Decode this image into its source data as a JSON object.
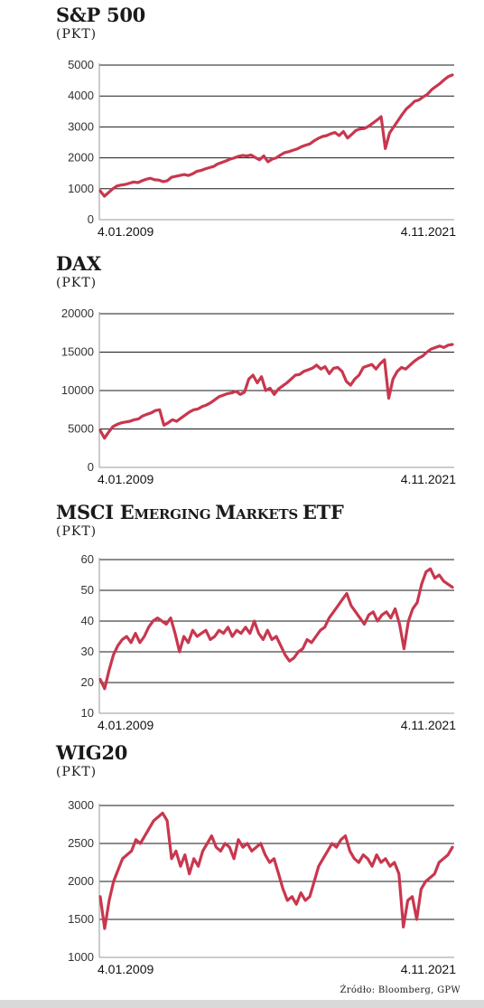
{
  "source": "Źródło: Bloomberg, GPW",
  "style": {
    "line_color": "#c8374e",
    "grid_color": "#1a1a1a",
    "axis_color": "#999999"
  },
  "chart_data": [
    {
      "type": "line",
      "title": "S&P 500",
      "unit": "(PKT)",
      "ylim": [
        0,
        5000
      ],
      "yticks": [
        0,
        1000,
        2000,
        3000,
        4000,
        5000
      ],
      "ytick_labels": [
        "0",
        "1000",
        "2000",
        "3000",
        "4000",
        "5000"
      ],
      "gridlines": [
        1000,
        2000,
        3000,
        4000,
        5000
      ],
      "x_start_label": "4.01.2009",
      "x_end_label": "4.11.2021",
      "series": [
        {
          "values": [
            930,
            760,
            880,
            1000,
            1090,
            1120,
            1140,
            1180,
            1220,
            1200,
            1260,
            1310,
            1340,
            1290,
            1280,
            1230,
            1260,
            1370,
            1400,
            1430,
            1460,
            1430,
            1480,
            1560,
            1590,
            1640,
            1680,
            1720,
            1800,
            1850,
            1900,
            1960,
            2000,
            2050,
            2080,
            2060,
            2090,
            2010,
            1940,
            2060,
            1870,
            1960,
            2000,
            2090,
            2170,
            2200,
            2250,
            2290,
            2360,
            2410,
            2450,
            2550,
            2630,
            2690,
            2720,
            2780,
            2820,
            2720,
            2850,
            2640,
            2760,
            2890,
            2940,
            2950,
            3020,
            3120,
            3220,
            3330,
            2300,
            2800,
            3000,
            3200,
            3400,
            3580,
            3700,
            3830,
            3870,
            3970,
            4050,
            4200,
            4300,
            4400,
            4520,
            4630,
            4680
          ]
        }
      ]
    },
    {
      "type": "line",
      "title": "DAX",
      "unit": "(PKT)",
      "ylim": [
        0,
        20000
      ],
      "yticks": [
        0,
        5000,
        10000,
        15000,
        20000
      ],
      "ytick_labels": [
        "0",
        "5000",
        "10000",
        "15000",
        "20000"
      ],
      "gridlines": [
        5000,
        10000,
        15000,
        20000
      ],
      "x_start_label": "4.01.2009",
      "x_end_label": "4.11.2021",
      "series": [
        {
          "values": [
            4800,
            3800,
            4600,
            5300,
            5600,
            5800,
            5900,
            6000,
            6200,
            6300,
            6700,
            6900,
            7100,
            7400,
            7500,
            5500,
            5800,
            6200,
            6000,
            6400,
            6800,
            7200,
            7500,
            7600,
            7900,
            8100,
            8400,
            8800,
            9200,
            9400,
            9600,
            9700,
            9900,
            9500,
            9800,
            11500,
            12000,
            11000,
            11800,
            10000,
            10300,
            9500,
            10200,
            10600,
            11000,
            11500,
            12000,
            12100,
            12500,
            12700,
            12900,
            13300,
            12800,
            13100,
            12200,
            12900,
            13000,
            12500,
            11200,
            10700,
            11500,
            12000,
            13000,
            13200,
            13400,
            12800,
            13500,
            14000,
            9000,
            11500,
            12500,
            13000,
            12800,
            13300,
            13800,
            14200,
            14500,
            15000,
            15400,
            15600,
            15800,
            15600,
            15900,
            16000
          ]
        }
      ]
    },
    {
      "type": "line",
      "title": "MSCI Emerging Markets ETF",
      "unit": "(PKT)",
      "ylim": [
        10,
        60
      ],
      "yticks": [
        10,
        20,
        30,
        40,
        50,
        60
      ],
      "ytick_labels": [
        "10",
        "20",
        "30",
        "40",
        "50",
        "60"
      ],
      "gridlines": [
        20,
        30,
        40,
        50,
        60
      ],
      "x_start_label": "4.01.2009",
      "x_end_label": "4.11.2021",
      "series": [
        {
          "values": [
            21,
            18,
            24,
            29,
            32,
            34,
            35,
            33,
            36,
            33,
            35,
            38,
            40,
            41,
            40,
            39,
            41,
            36,
            30,
            35,
            33,
            37,
            35,
            36,
            37,
            34,
            35,
            37,
            36,
            38,
            35,
            37,
            36,
            38,
            36,
            40,
            36,
            34,
            37,
            34,
            35,
            32,
            29,
            27,
            28,
            30,
            31,
            34,
            33,
            35,
            37,
            38,
            41,
            43,
            45,
            47,
            49,
            45,
            43,
            41,
            39,
            42,
            43,
            40,
            42,
            43,
            41,
            44,
            39,
            31,
            40,
            44,
            46,
            52,
            56,
            57,
            54,
            55,
            53,
            52,
            51
          ]
        }
      ]
    },
    {
      "type": "line",
      "title": "WIG20",
      "unit": "(PKT)",
      "ylim": [
        1000,
        3000
      ],
      "yticks": [
        1000,
        1500,
        2000,
        2500,
        3000
      ],
      "ytick_labels": [
        "1000",
        "1500",
        "2000",
        "2500",
        "3000"
      ],
      "gridlines": [
        1500,
        2000,
        2500,
        3000
      ],
      "x_start_label": "4.01.2009",
      "x_end_label": "4.11.2021",
      "series": [
        {
          "values": [
            1800,
            1380,
            1750,
            2000,
            2150,
            2300,
            2350,
            2400,
            2550,
            2500,
            2600,
            2700,
            2800,
            2850,
            2900,
            2800,
            2300,
            2400,
            2200,
            2350,
            2100,
            2300,
            2200,
            2400,
            2500,
            2600,
            2450,
            2400,
            2500,
            2450,
            2300,
            2550,
            2450,
            2500,
            2400,
            2450,
            2500,
            2350,
            2250,
            2300,
            2100,
            1900,
            1750,
            1800,
            1700,
            1850,
            1750,
            1800,
            2000,
            2200,
            2300,
            2400,
            2500,
            2450,
            2550,
            2600,
            2400,
            2300,
            2250,
            2350,
            2300,
            2200,
            2350,
            2250,
            2300,
            2200,
            2250,
            2100,
            1400,
            1750,
            1800,
            1500,
            1900,
            2000,
            2050,
            2100,
            2250,
            2300,
            2350,
            2450
          ]
        }
      ]
    }
  ]
}
